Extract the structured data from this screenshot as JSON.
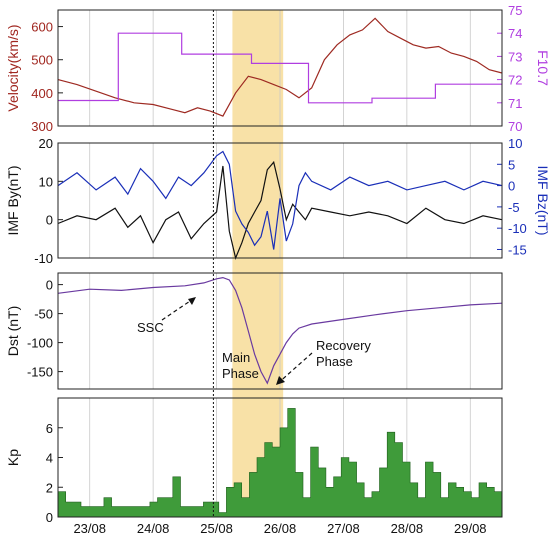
{
  "chart_data": [
    {
      "type": "line",
      "panel": "solar-wind",
      "x_start": "23/08 00:00",
      "left_axis": {
        "label": "Velocity(km/s)",
        "ylim": [
          300,
          650
        ],
        "ticks": [
          300,
          400,
          500,
          600
        ],
        "color": "#a0261f"
      },
      "right_axis": {
        "label": "F10.7",
        "ylim": [
          70,
          75
        ],
        "ticks": [
          70,
          71,
          72,
          73,
          74,
          75
        ],
        "color": "#b03ee0"
      },
      "series": [
        {
          "axis": "left",
          "color": "#9e2a22",
          "x": [
            0,
            0.3,
            0.6,
            0.9,
            1.2,
            1.5,
            1.8,
            2.0,
            2.2,
            2.4,
            2.6,
            2.8,
            3.0,
            3.2,
            3.4,
            3.6,
            3.8,
            4.0,
            4.2,
            4.4,
            4.6,
            4.8,
            5.0,
            5.2,
            5.4,
            5.6,
            5.8,
            6.0,
            6.2,
            6.4,
            6.6,
            6.8,
            7.0
          ],
          "values": [
            440,
            425,
            405,
            385,
            370,
            365,
            350,
            340,
            355,
            345,
            330,
            400,
            450,
            440,
            425,
            410,
            385,
            415,
            500,
            545,
            575,
            590,
            625,
            585,
            565,
            545,
            535,
            540,
            520,
            510,
            495,
            470,
            460
          ]
        },
        {
          "axis": "right",
          "color": "#b03ee0",
          "step": true,
          "x": [
            0,
            0.95,
            0.95,
            1.95,
            1.95,
            3.05,
            3.05,
            3.95,
            3.95,
            4.95,
            4.95,
            5.95,
            5.95,
            7.0
          ],
          "values": [
            71.1,
            71.1,
            74.0,
            74.0,
            73.1,
            73.1,
            72.7,
            72.7,
            71.0,
            71.0,
            71.2,
            71.2,
            71.8,
            71.8
          ]
        }
      ]
    },
    {
      "type": "line",
      "panel": "imf",
      "left_axis": {
        "label": "IMF By(nT)",
        "ylim": [
          -10,
          20
        ],
        "ticks": [
          -10,
          0,
          10,
          20
        ],
        "color": "#111111"
      },
      "right_axis": {
        "label": "IMF Bz(nT)",
        "ylim": [
          -17,
          10
        ],
        "ticks": [
          -15,
          -10,
          -5,
          0,
          5,
          10
        ],
        "color": "#1a2fb8"
      },
      "series": [
        {
          "axis": "left",
          "color": "#111111",
          "x": [
            0,
            0.3,
            0.6,
            0.9,
            1.1,
            1.3,
            1.5,
            1.7,
            1.9,
            2.1,
            2.3,
            2.5,
            2.6,
            2.7,
            2.8,
            2.9,
            3.0,
            3.1,
            3.2,
            3.3,
            3.4,
            3.5,
            3.6,
            3.7,
            3.8,
            3.9,
            4.0,
            4.3,
            4.6,
            4.9,
            5.2,
            5.5,
            5.8,
            6.1,
            6.4,
            6.7,
            7.0
          ],
          "values": [
            -1,
            1,
            0,
            3,
            -2,
            1,
            -6,
            0,
            2,
            -5,
            -1,
            2,
            14,
            -3,
            -10,
            -6,
            -1,
            2,
            5,
            13,
            15,
            8,
            0,
            4,
            2,
            0,
            3,
            2,
            1,
            2,
            1,
            -1,
            3,
            0,
            -1,
            1,
            0
          ]
        },
        {
          "axis": "right",
          "color": "#1a2fb8",
          "x": [
            0,
            0.3,
            0.6,
            0.9,
            1.1,
            1.3,
            1.5,
            1.7,
            1.9,
            2.1,
            2.3,
            2.5,
            2.6,
            2.7,
            2.8,
            2.9,
            3.0,
            3.1,
            3.2,
            3.3,
            3.4,
            3.5,
            3.6,
            3.7,
            3.8,
            3.9,
            4.0,
            4.3,
            4.6,
            4.9,
            5.2,
            5.5,
            5.8,
            6.1,
            6.4,
            6.7,
            7.0
          ],
          "values": [
            0,
            3,
            -1,
            2,
            -2,
            4,
            1,
            -3,
            2,
            0,
            3,
            7,
            8,
            5,
            -6,
            -9,
            -11,
            -14,
            -12,
            -6,
            -15,
            -3,
            -13,
            -9,
            0,
            3,
            1,
            -1,
            2,
            0,
            1,
            -1,
            0,
            1,
            -1,
            1,
            0
          ]
        }
      ]
    },
    {
      "type": "line",
      "panel": "dst",
      "left_axis": {
        "label": "Dst (nT)",
        "ylim": [
          -180,
          20
        ],
        "ticks": [
          -150,
          -100,
          -50,
          0
        ]
      },
      "series": [
        {
          "color": "#6a3aa0",
          "x": [
            0,
            0.5,
            1.0,
            1.5,
            2.0,
            2.3,
            2.5,
            2.6,
            2.7,
            2.8,
            2.9,
            3.0,
            3.1,
            3.2,
            3.3,
            3.4,
            3.5,
            3.6,
            3.7,
            3.8,
            4.0,
            4.5,
            5.0,
            5.5,
            6.0,
            6.5,
            7.0
          ],
          "values": [
            -15,
            -8,
            -10,
            -5,
            -2,
            3,
            10,
            12,
            8,
            -10,
            -40,
            -80,
            -120,
            -150,
            -170,
            -140,
            -120,
            -100,
            -85,
            -75,
            -68,
            -60,
            -52,
            -45,
            -40,
            -35,
            -32
          ]
        }
      ],
      "annotations": [
        {
          "text": "SSC"
        },
        {
          "text": "Main"
        },
        {
          "text": "Phase"
        },
        {
          "text": "Recovery"
        },
        {
          "text": "Phase"
        }
      ]
    },
    {
      "type": "area",
      "panel": "kp",
      "left_axis": {
        "label": "Kp",
        "ylim": [
          0,
          8
        ],
        "ticks": [
          0,
          2,
          4,
          6
        ]
      },
      "step_values_per_3h": [
        1.7,
        1,
        1,
        0.7,
        0.7,
        0.7,
        1.3,
        0.7,
        0.7,
        0.7,
        0.7,
        0.7,
        1,
        1.3,
        1.3,
        2.7,
        0.7,
        0.7,
        0.7,
        1,
        1,
        0.3,
        2,
        2.3,
        1.3,
        3,
        4,
        5,
        4.7,
        6,
        7.3,
        3,
        1.3,
        4.7,
        3.3,
        2,
        2.7,
        4,
        3.7,
        2.3,
        1.3,
        1.7,
        3.3,
        5.7,
        5,
        3.7,
        2.3,
        1.3,
        3.7,
        3,
        1.3,
        2.3,
        2,
        1.7,
        1.3,
        2.3,
        2,
        1.7
      ],
      "fill": "#3f9b3a"
    }
  ],
  "x_tick_labels": [
    "23/08",
    "24/08",
    "25/08",
    "26/08",
    "27/08",
    "28/08",
    "29/08"
  ],
  "storm_band": {
    "start": 2.75,
    "end": 3.55,
    "color": "#f5d78a"
  },
  "ssc_line_x": 2.45
}
